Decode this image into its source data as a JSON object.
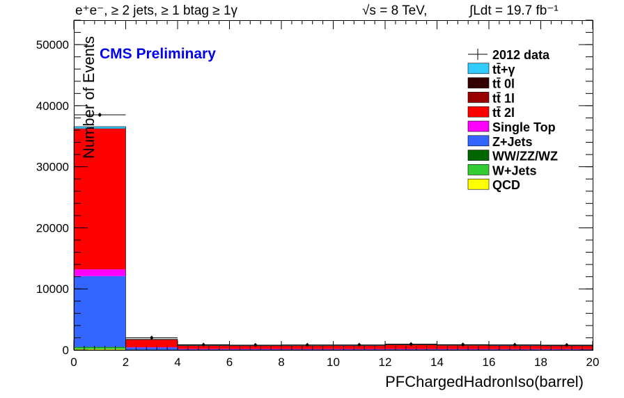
{
  "header": {
    "channel_label": "e⁺e⁻, ≥ 2 jets, ≥ 1 btag ≥ 1γ",
    "energy_label": "√s = 8 TeV,",
    "lumi_label": "∫Ldt = 19.7 fb⁻¹"
  },
  "brand": {
    "text": "CMS Preliminary",
    "color": "#0000ee"
  },
  "chart_data": {
    "type": "bar",
    "stacked": true,
    "xlabel": "PFChargedHadronIso(barrel)",
    "ylabel": "Number of Events",
    "xlim": [
      0,
      20
    ],
    "ylim": [
      0,
      54000
    ],
    "bin_edges": [
      0,
      2,
      4,
      6,
      8,
      10,
      12,
      14,
      16,
      18,
      20
    ],
    "x_ticks": [
      0,
      2,
      4,
      6,
      8,
      10,
      12,
      14,
      16,
      18,
      20
    ],
    "y_ticks": [
      0,
      10000,
      20000,
      30000,
      40000,
      50000
    ],
    "legend_position": "top-right",
    "grid": false,
    "series": [
      {
        "name": "QCD",
        "color": "#ffff00",
        "values": [
          150,
          0,
          0,
          0,
          0,
          0,
          0,
          0,
          0,
          0
        ]
      },
      {
        "name": "W+Jets",
        "color": "#33cc33",
        "values": [
          250,
          20,
          10,
          10,
          10,
          10,
          10,
          10,
          10,
          10
        ]
      },
      {
        "name": "WW/ZZ/WZ",
        "color": "#006600",
        "values": [
          100,
          10,
          5,
          5,
          5,
          5,
          5,
          5,
          5,
          5
        ]
      },
      {
        "name": "Z+Jets",
        "color": "#3366ff",
        "values": [
          11600,
          400,
          150,
          140,
          130,
          130,
          140,
          130,
          120,
          120
        ]
      },
      {
        "name": "Single Top",
        "color": "#ff00ff",
        "values": [
          1100,
          30,
          15,
          15,
          15,
          15,
          15,
          15,
          15,
          15
        ]
      },
      {
        "name": "tt̄ 2l",
        "color": "#ff0000",
        "values": [
          23000,
          1250,
          550,
          550,
          560,
          570,
          700,
          620,
          580,
          560
        ]
      },
      {
        "name": "tt̄ 1l",
        "color": "#990000",
        "values": [
          60,
          5,
          3,
          3,
          3,
          3,
          3,
          3,
          3,
          3
        ]
      },
      {
        "name": "tt̄ 0l",
        "color": "#330000",
        "values": [
          10,
          2,
          1,
          1,
          1,
          1,
          1,
          1,
          1,
          1
        ]
      },
      {
        "name": "tt̄+γ",
        "color": "#33ccff",
        "values": [
          300,
          40,
          20,
          20,
          20,
          20,
          25,
          20,
          20,
          20
        ]
      }
    ],
    "data_points": {
      "name": "2012 data",
      "x": [
        1,
        3,
        5,
        7,
        9,
        11,
        13,
        15,
        17,
        19
      ],
      "y": [
        38500,
        2000,
        850,
        800,
        820,
        830,
        950,
        870,
        840,
        800
      ]
    }
  }
}
